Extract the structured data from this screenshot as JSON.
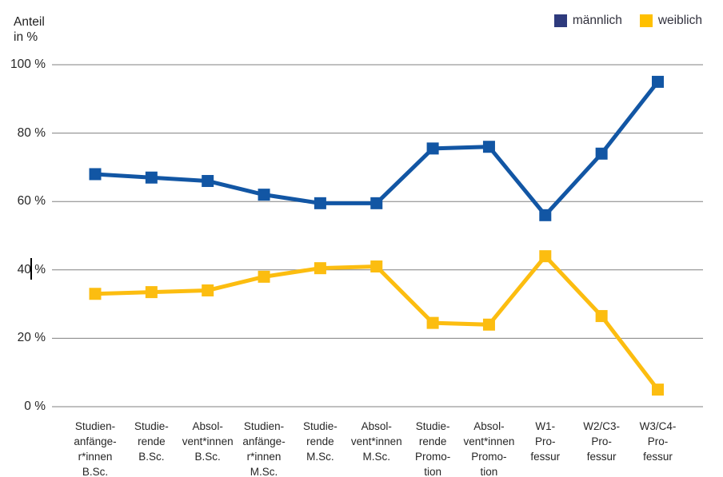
{
  "title": {
    "line1": "Anteil",
    "line2": "in %"
  },
  "legend": {
    "items": [
      {
        "label": "männlich",
        "swatch_color": "#2e3a7d"
      },
      {
        "label": "weiblich",
        "swatch_color": "#ffc000"
      }
    ]
  },
  "y_axis": {
    "tick_labels": [
      "100 %",
      "80 %",
      "60 %",
      "40 %",
      "20 %",
      "0 %"
    ],
    "tick_values": [
      100,
      80,
      60,
      40,
      20,
      0
    ]
  },
  "colors": {
    "gridline": "#808080",
    "text": "#262626"
  },
  "chart_data": {
    "type": "line",
    "title": "Anteil in %",
    "ylabel": "Anteil in %",
    "xlabel": "",
    "ylim": [
      0,
      100
    ],
    "grid": true,
    "legend_position": "top-right",
    "categories": [
      "Studienanfänger*innen B.Sc.",
      "Studierende B.Sc.",
      "Absolvent*innen B.Sc.",
      "Studienanfänger*innen M.Sc.",
      "Studierende M.Sc.",
      "Absolvent*innen M.Sc.",
      "Studierende Promotion",
      "Absolvent*innen Promotion",
      "W1-Professur",
      "W2/C3-Professur",
      "W3/C4-Professur"
    ],
    "category_label_lines": [
      [
        "Studien-",
        "anfänge-",
        "r*innen",
        "B.Sc."
      ],
      [
        "Studie-",
        "rende",
        "B.Sc."
      ],
      [
        "Absol-",
        "vent*innen",
        "B.Sc."
      ],
      [
        "Studien-",
        "anfänge-",
        "r*innen",
        "M.Sc."
      ],
      [
        "Studie-",
        "rende",
        "M.Sc."
      ],
      [
        "Absol-",
        "vent*innen",
        "M.Sc."
      ],
      [
        "Studie-",
        "rende",
        "Promo-",
        "tion"
      ],
      [
        "Absol-",
        "vent*innen",
        "Promo-",
        "tion"
      ],
      [
        "W1-",
        "Pro-",
        "fessur"
      ],
      [
        "W2/C3-",
        "Pro-",
        "fessur"
      ],
      [
        "W3/C4-",
        "Pro-",
        "fessur"
      ]
    ],
    "series": [
      {
        "name": "männlich",
        "color": "#1256a4",
        "marker": "square",
        "values": [
          68,
          67,
          66,
          62,
          59.5,
          59.5,
          75.5,
          76,
          56,
          74,
          95
        ]
      },
      {
        "name": "weiblich",
        "color": "#fcbd10",
        "marker": "square",
        "values": [
          33,
          33.5,
          34,
          38,
          40.5,
          41,
          24.5,
          24,
          44,
          26.5,
          5
        ]
      }
    ]
  }
}
